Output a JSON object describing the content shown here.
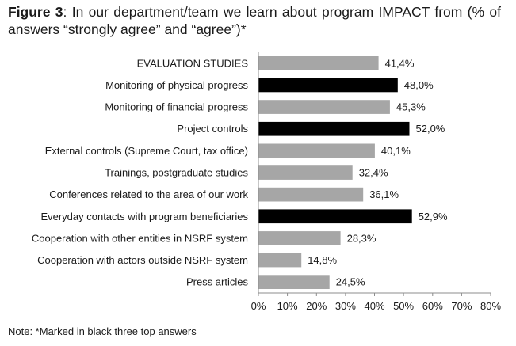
{
  "title": {
    "figure_label": "Figure 3",
    "text": ": In our department/team we learn about program IMPACT from (% of answers “strongly agree” and “agree”)*"
  },
  "note": "Note: *Marked in black three top answers",
  "colors": {
    "highlight": "#000000",
    "normal": "#a6a6a6"
  },
  "chart_data": {
    "type": "bar",
    "orientation": "horizontal",
    "title": "In our department/team we learn about program IMPACT from (% of answers “strongly agree” and “agree”)*",
    "xlabel": "",
    "ylabel": "",
    "xlim": [
      0,
      80
    ],
    "x_ticks": [
      "0%",
      "10%",
      "20%",
      "30%",
      "40%",
      "50%",
      "60%",
      "70%",
      "80%"
    ],
    "grid": false,
    "categories": [
      "EVALUATION STUDIES",
      "Monitoring of physical progress",
      "Monitoring of financial progress",
      "Project controls",
      "External controls (Supreme Court, tax office)",
      "Trainings, postgraduate studies",
      "Conferences related to the area of our work",
      "Everyday contacts with program beneficiaries",
      "Cooperation with other entities in NSRF system",
      "Cooperation with actors outside NSRF system",
      "Press articles"
    ],
    "values": [
      41.4,
      48.0,
      45.3,
      52.0,
      40.1,
      32.4,
      36.1,
      52.9,
      28.3,
      14.8,
      24.5
    ],
    "value_labels": [
      "41,4%",
      "48,0%",
      "45,3%",
      "52,0%",
      "40,1%",
      "32,4%",
      "36,1%",
      "52,9%",
      "28,3%",
      "14,8%",
      "24,5%"
    ],
    "highlighted": [
      false,
      true,
      false,
      true,
      false,
      false,
      false,
      true,
      false,
      false,
      false
    ]
  }
}
